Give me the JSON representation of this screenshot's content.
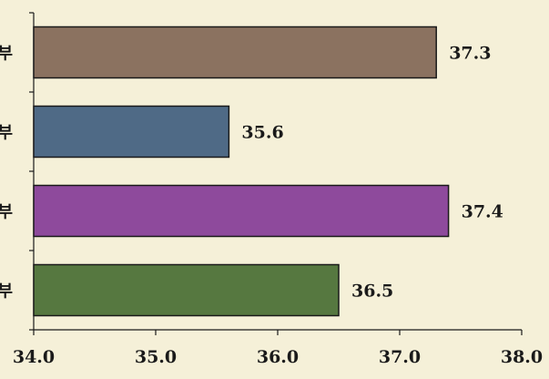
{
  "chart_data": {
    "type": "bar",
    "orientation": "horizontal",
    "categories": [
      "부",
      "부",
      "부",
      "부"
    ],
    "values": [
      37.3,
      35.6,
      37.4,
      36.5
    ],
    "data_labels": [
      "37.3",
      "35.6",
      "37.4",
      "36.5"
    ],
    "bar_colors": [
      "#8b7260",
      "#4f6a86",
      "#8e4a9c",
      "#567840"
    ],
    "xlim": [
      34.0,
      38.0
    ],
    "xticks": [
      "34.0",
      "35.0",
      "36.0",
      "37.0",
      "38.0"
    ],
    "title": "",
    "xlabel": "",
    "ylabel": "",
    "grid": false,
    "legend": "none"
  }
}
